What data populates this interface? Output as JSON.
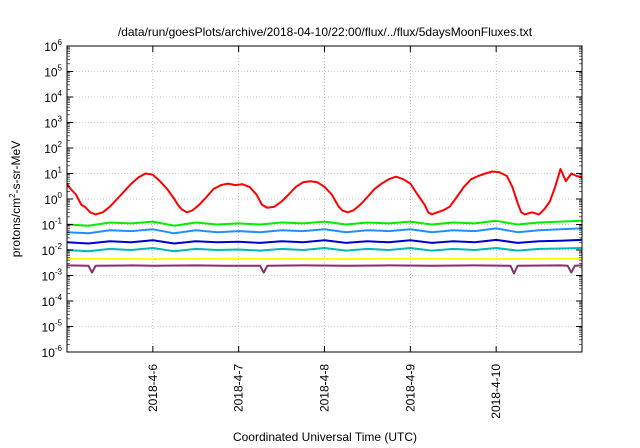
{
  "chart_data": {
    "type": "line",
    "title": "/data/run/goesPlots/archive/2018-04-10/22:00/flux/../flux/5daysMoonFluxes.txt",
    "xlabel": "Coordinated Universal Time (UTC)",
    "ylabel_parts": [
      "protons/cm",
      "2",
      "-s-sr-MeV"
    ],
    "x_range": [
      "2018-04-05T00:00",
      "2018-04-11T00:00"
    ],
    "x_ticks": [
      {
        "date": "2018-04-06T00:00",
        "label": "2018-4-6"
      },
      {
        "date": "2018-04-07T00:00",
        "label": "2018-4-7"
      },
      {
        "date": "2018-04-08T00:00",
        "label": "2018-4-8"
      },
      {
        "date": "2018-04-09T00:00",
        "label": "2018-4-9"
      },
      {
        "date": "2018-04-10T00:00",
        "label": "2018-4-10"
      }
    ],
    "y_scale": "log",
    "ylim": [
      1e-06,
      1000000.0
    ],
    "y_ticks": [
      {
        "value": 1e-06,
        "base": "10",
        "exp": "-6"
      },
      {
        "value": 1e-05,
        "base": "10",
        "exp": "-5"
      },
      {
        "value": 0.0001,
        "base": "10",
        "exp": "-4"
      },
      {
        "value": 0.001,
        "base": "10",
        "exp": "-3"
      },
      {
        "value": 0.01,
        "base": "10",
        "exp": "-2"
      },
      {
        "value": 0.1,
        "base": "10",
        "exp": "-1"
      },
      {
        "value": 1,
        "base": "10",
        "exp": "0"
      },
      {
        "value": 10,
        "base": "10",
        "exp": "1"
      },
      {
        "value": 100,
        "base": "10",
        "exp": "2"
      },
      {
        "value": 1000,
        "base": "10",
        "exp": "3"
      },
      {
        "value": 10000,
        "base": "10",
        "exp": "4"
      },
      {
        "value": 100000,
        "base": "10",
        "exp": "5"
      },
      {
        "value": 1000000,
        "base": "10",
        "exp": "6"
      }
    ],
    "grid": true,
    "series": [
      {
        "color": "#ff0000",
        "x": [
          "2018-04-05T00:00",
          "2018-04-05T01:00",
          "2018-04-05T02:30",
          "2018-04-05T04:00",
          "2018-04-05T05:00",
          "2018-04-05T06:30",
          "2018-04-05T08:00",
          "2018-04-05T10:00",
          "2018-04-05T12:00",
          "2018-04-05T14:00",
          "2018-04-05T16:00",
          "2018-04-05T18:00",
          "2018-04-05T20:00",
          "2018-04-05T22:00",
          "2018-04-06T00:00",
          "2018-04-06T02:00",
          "2018-04-06T04:00",
          "2018-04-06T06:00",
          "2018-04-06T07:00",
          "2018-04-06T08:00",
          "2018-04-06T09:30",
          "2018-04-06T11:00",
          "2018-04-06T13:00",
          "2018-04-06T15:00",
          "2018-04-06T17:00",
          "2018-04-06T19:00",
          "2018-04-06T21:00",
          "2018-04-06T23:00",
          "2018-04-07T01:00",
          "2018-04-07T03:00",
          "2018-04-07T05:00",
          "2018-04-07T06:30",
          "2018-04-07T08:00",
          "2018-04-07T10:00",
          "2018-04-07T12:00",
          "2018-04-07T14:00",
          "2018-04-07T16:00",
          "2018-04-07T18:00",
          "2018-04-07T20:00",
          "2018-04-07T22:00",
          "2018-04-08T00:00",
          "2018-04-08T02:00",
          "2018-04-08T04:00",
          "2018-04-08T05:00",
          "2018-04-08T06:30",
          "2018-04-08T08:00",
          "2018-04-08T10:00",
          "2018-04-08T12:00",
          "2018-04-08T14:00",
          "2018-04-08T16:00",
          "2018-04-08T18:00",
          "2018-04-08T20:00",
          "2018-04-08T22:00",
          "2018-04-09T00:00",
          "2018-04-09T02:00",
          "2018-04-09T04:00",
          "2018-04-09T05:00",
          "2018-04-09T06:00",
          "2018-04-09T07:30",
          "2018-04-09T09:00",
          "2018-04-09T11:00",
          "2018-04-09T13:00",
          "2018-04-09T15:00",
          "2018-04-09T17:00",
          "2018-04-09T19:00",
          "2018-04-09T21:00",
          "2018-04-09T23:00",
          "2018-04-10T01:00",
          "2018-04-10T03:00",
          "2018-04-10T04:30",
          "2018-04-10T06:00",
          "2018-04-10T07:00",
          "2018-04-10T08:00",
          "2018-04-10T10:00",
          "2018-04-10T12:00",
          "2018-04-10T13:30",
          "2018-04-10T15:00",
          "2018-04-10T16:30",
          "2018-04-10T18:00",
          "2018-04-10T19:30",
          "2018-04-10T21:00",
          "2018-04-10T22:30",
          "2018-04-11T00:00"
        ],
        "y": [
          4,
          2.5,
          1.5,
          0.6,
          0.5,
          0.3,
          0.25,
          0.3,
          0.5,
          1,
          2,
          4,
          7,
          10,
          9,
          5,
          2.5,
          1,
          0.6,
          0.4,
          0.3,
          0.35,
          0.6,
          1.2,
          2.5,
          3.5,
          4,
          3.5,
          3.8,
          3,
          1.5,
          0.6,
          0.45,
          0.5,
          0.8,
          1.5,
          3,
          4.5,
          5,
          4.5,
          3,
          1.5,
          0.5,
          0.35,
          0.3,
          0.35,
          0.6,
          1.2,
          2.5,
          4,
          6,
          7.5,
          6,
          4,
          1.5,
          0.6,
          0.3,
          0.25,
          0.3,
          0.35,
          0.5,
          1.2,
          3,
          6,
          8,
          10,
          12,
          11,
          8,
          3,
          0.7,
          0.3,
          0.25,
          0.3,
          0.25,
          0.4,
          0.8,
          3,
          15,
          5,
          10,
          8,
          7
        ]
      },
      {
        "color": "#00ee00",
        "x": [
          "2018-04-05T00:00",
          "2018-04-05T06:00",
          "2018-04-05T12:00",
          "2018-04-05T18:00",
          "2018-04-06T00:00",
          "2018-04-06T06:00",
          "2018-04-06T12:00",
          "2018-04-06T18:00",
          "2018-04-07T00:00",
          "2018-04-07T06:00",
          "2018-04-07T12:00",
          "2018-04-07T18:00",
          "2018-04-08T00:00",
          "2018-04-08T06:00",
          "2018-04-08T12:00",
          "2018-04-08T18:00",
          "2018-04-09T00:00",
          "2018-04-09T06:00",
          "2018-04-09T12:00",
          "2018-04-09T18:00",
          "2018-04-10T00:00",
          "2018-04-10T06:00",
          "2018-04-10T12:00",
          "2018-04-10T18:00",
          "2018-04-11T00:00"
        ],
        "y": [
          0.1,
          0.09,
          0.12,
          0.11,
          0.13,
          0.09,
          0.12,
          0.1,
          0.11,
          0.1,
          0.12,
          0.11,
          0.13,
          0.1,
          0.12,
          0.11,
          0.13,
          0.1,
          0.12,
          0.11,
          0.14,
          0.1,
          0.12,
          0.13,
          0.14
        ]
      },
      {
        "color": "#1e90ff",
        "x": [
          "2018-04-05T00:00",
          "2018-04-05T06:00",
          "2018-04-05T12:00",
          "2018-04-05T18:00",
          "2018-04-06T00:00",
          "2018-04-06T06:00",
          "2018-04-06T12:00",
          "2018-04-06T18:00",
          "2018-04-07T00:00",
          "2018-04-07T06:00",
          "2018-04-07T12:00",
          "2018-04-07T18:00",
          "2018-04-08T00:00",
          "2018-04-08T06:00",
          "2018-04-08T12:00",
          "2018-04-08T18:00",
          "2018-04-09T00:00",
          "2018-04-09T06:00",
          "2018-04-09T12:00",
          "2018-04-09T18:00",
          "2018-04-10T00:00",
          "2018-04-10T06:00",
          "2018-04-10T12:00",
          "2018-04-10T18:00",
          "2018-04-11T00:00"
        ],
        "y": [
          0.05,
          0.045,
          0.06,
          0.055,
          0.065,
          0.045,
          0.06,
          0.05,
          0.055,
          0.05,
          0.06,
          0.055,
          0.065,
          0.05,
          0.06,
          0.055,
          0.065,
          0.05,
          0.06,
          0.055,
          0.07,
          0.05,
          0.06,
          0.065,
          0.07
        ]
      },
      {
        "color": "#0000cd",
        "x": [
          "2018-04-05T00:00",
          "2018-04-05T06:00",
          "2018-04-05T12:00",
          "2018-04-05T18:00",
          "2018-04-06T00:00",
          "2018-04-06T06:00",
          "2018-04-06T12:00",
          "2018-04-06T18:00",
          "2018-04-07T00:00",
          "2018-04-07T06:00",
          "2018-04-07T12:00",
          "2018-04-07T18:00",
          "2018-04-08T00:00",
          "2018-04-08T06:00",
          "2018-04-08T12:00",
          "2018-04-08T18:00",
          "2018-04-09T00:00",
          "2018-04-09T06:00",
          "2018-04-09T12:00",
          "2018-04-09T18:00",
          "2018-04-10T00:00",
          "2018-04-10T06:00",
          "2018-04-10T12:00",
          "2018-04-10T18:00",
          "2018-04-11T00:00"
        ],
        "y": [
          0.02,
          0.018,
          0.022,
          0.02,
          0.024,
          0.018,
          0.022,
          0.02,
          0.021,
          0.019,
          0.022,
          0.02,
          0.024,
          0.019,
          0.022,
          0.02,
          0.024,
          0.019,
          0.022,
          0.02,
          0.025,
          0.019,
          0.022,
          0.023,
          0.025
        ]
      },
      {
        "color": "#00b8b8",
        "x": [
          "2018-04-05T00:00",
          "2018-04-05T06:00",
          "2018-04-05T12:00",
          "2018-04-05T18:00",
          "2018-04-06T00:00",
          "2018-04-06T06:00",
          "2018-04-06T12:00",
          "2018-04-06T18:00",
          "2018-04-07T00:00",
          "2018-04-07T06:00",
          "2018-04-07T12:00",
          "2018-04-07T18:00",
          "2018-04-08T00:00",
          "2018-04-08T06:00",
          "2018-04-08T12:00",
          "2018-04-08T18:00",
          "2018-04-09T00:00",
          "2018-04-09T06:00",
          "2018-04-09T12:00",
          "2018-04-09T18:00",
          "2018-04-10T00:00",
          "2018-04-10T06:00",
          "2018-04-10T12:00",
          "2018-04-10T18:00",
          "2018-04-11T00:00"
        ],
        "y": [
          0.01,
          0.009,
          0.011,
          0.01,
          0.012,
          0.009,
          0.011,
          0.01,
          0.0105,
          0.0095,
          0.011,
          0.01,
          0.012,
          0.0095,
          0.011,
          0.01,
          0.012,
          0.0095,
          0.011,
          0.01,
          0.012,
          0.0095,
          0.011,
          0.0115,
          0.012
        ]
      },
      {
        "color": "#ffff00",
        "x": [
          "2018-04-05T00:00",
          "2018-04-06T00:00",
          "2018-04-07T00:00",
          "2018-04-08T00:00",
          "2018-04-09T00:00",
          "2018-04-10T00:00",
          "2018-04-11T00:00"
        ],
        "y": [
          0.0045,
          0.0044,
          0.0045,
          0.0044,
          0.0045,
          0.0044,
          0.0045
        ]
      },
      {
        "color": "#8b2f6b",
        "x": [
          "2018-04-05T00:00",
          "2018-04-05T06:00",
          "2018-04-05T07:00",
          "2018-04-05T08:00",
          "2018-04-05T18:00",
          "2018-04-06T00:00",
          "2018-04-06T12:00",
          "2018-04-06T20:00",
          "2018-04-07T06:00",
          "2018-04-07T07:00",
          "2018-04-07T08:00",
          "2018-04-07T18:00",
          "2018-04-08T06:00",
          "2018-04-08T18:00",
          "2018-04-09T06:00",
          "2018-04-09T18:00",
          "2018-04-10T04:00",
          "2018-04-10T05:00",
          "2018-04-10T06:00",
          "2018-04-10T18:00",
          "2018-04-10T20:00",
          "2018-04-10T21:00",
          "2018-04-10T22:00",
          "2018-04-11T00:00"
        ],
        "y": [
          0.0025,
          0.0024,
          0.0013,
          0.0024,
          0.0025,
          0.0024,
          0.0025,
          0.0024,
          0.0024,
          0.0013,
          0.0024,
          0.0025,
          0.0024,
          0.0025,
          0.0024,
          0.0025,
          0.0024,
          0.0012,
          0.0024,
          0.0025,
          0.0024,
          0.0013,
          0.0024,
          0.0025
        ]
      }
    ]
  }
}
